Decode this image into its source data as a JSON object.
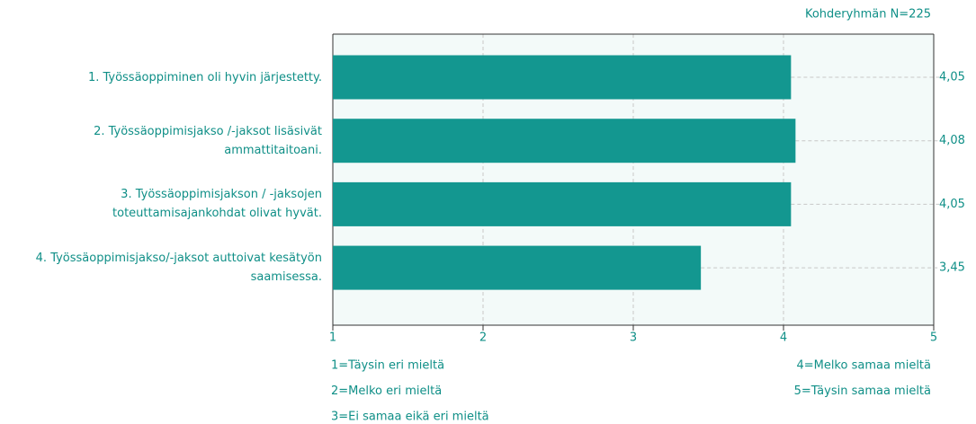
{
  "chart_data": {
    "type": "barh",
    "note": "Kohderyhmän N=225",
    "categories": [
      "1. Työssäoppiminen oli hyvin järjestetty.",
      "2. Työssäoppimisjakso /-jaksot lisäsivät ammattitaitoani.",
      "3. Työssäoppimisjakson / -jaksojen toteuttamisajankohdat olivat hyvät.",
      "4. Työssäoppimisjakso/-jaksot auttoivat kesätyön saamisessa."
    ],
    "values": [
      4.05,
      4.08,
      4.05,
      3.45
    ],
    "value_labels": [
      "4,05",
      "4,08",
      "4,05",
      "3,45"
    ],
    "color": "#139790",
    "xlim": [
      1,
      5
    ],
    "xticks": [
      1,
      2,
      3,
      4,
      5
    ],
    "grid": true,
    "scale_labels": [
      "1=Täysin eri mieltä",
      "2=Melko eri mieltä",
      "3=Ei samaa eikä eri mieltä",
      "4=Melko samaa mieltä",
      "5=Täysin samaa mieltä"
    ]
  }
}
